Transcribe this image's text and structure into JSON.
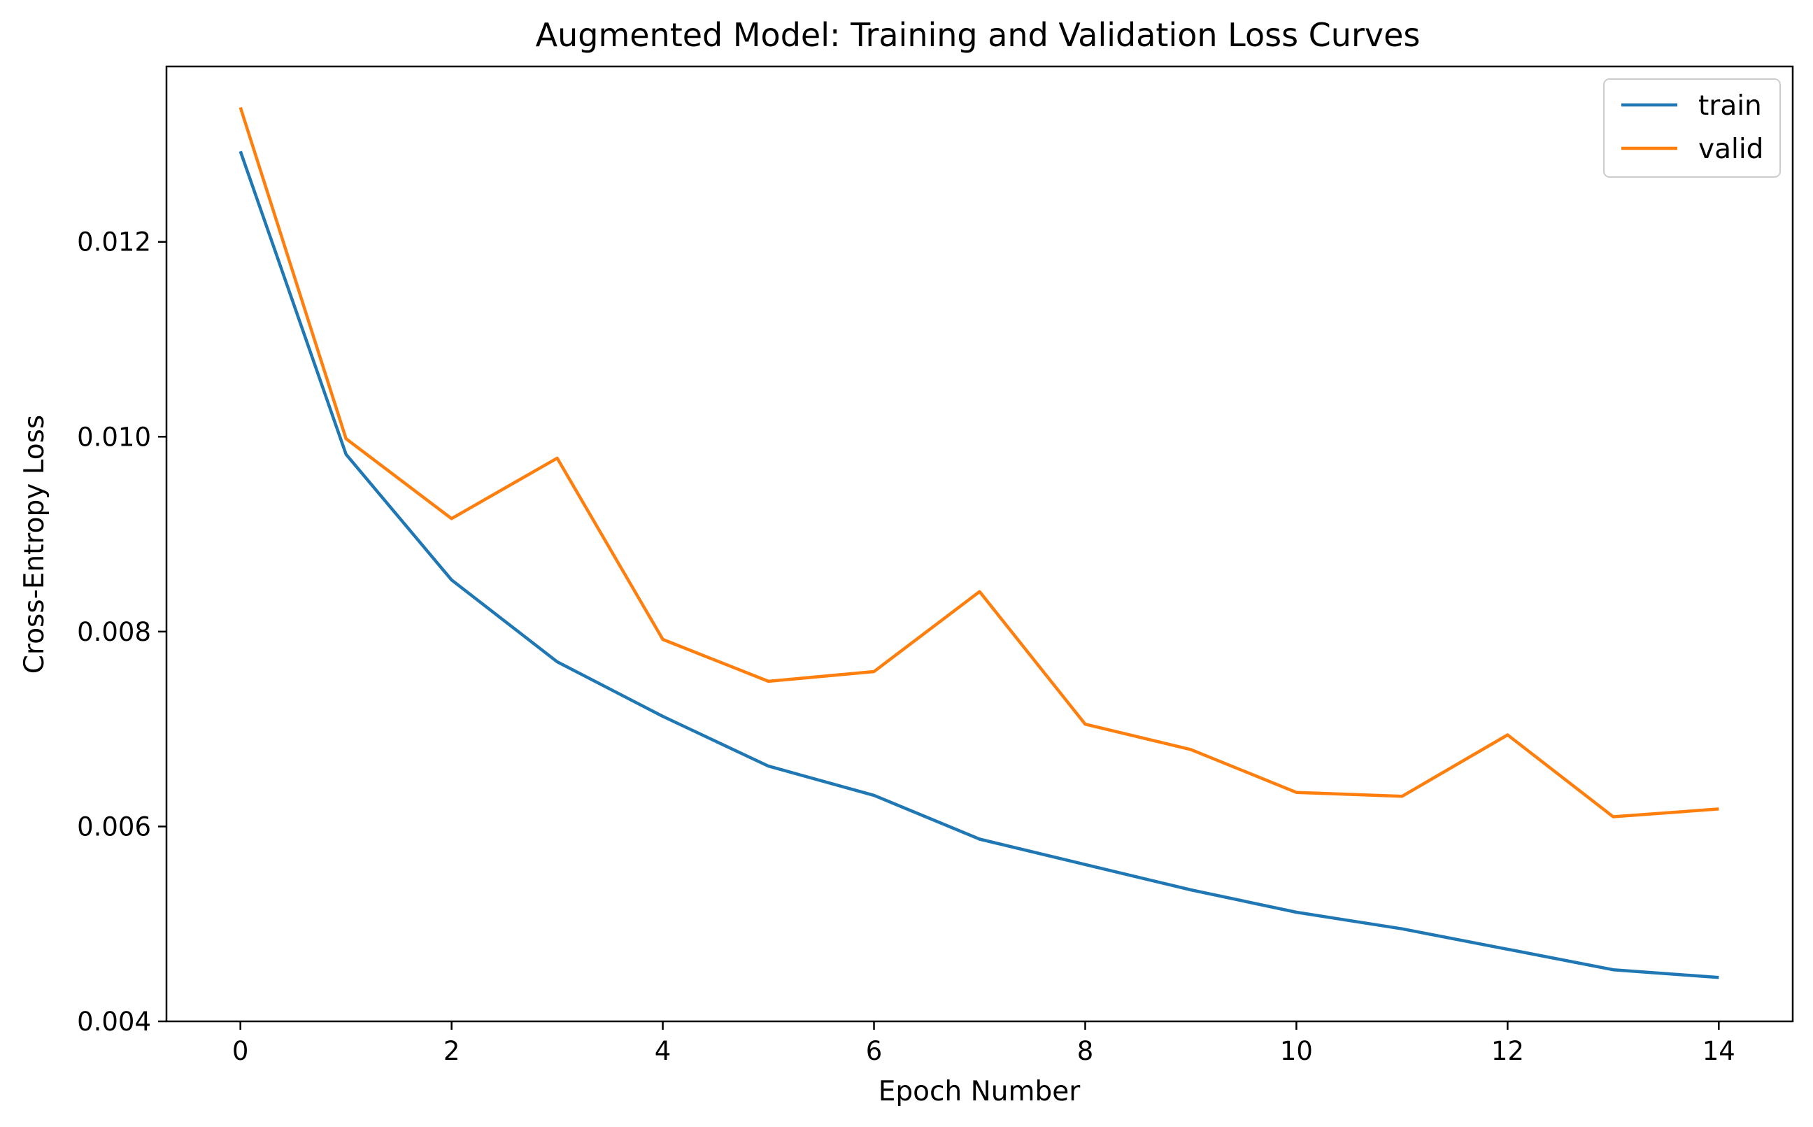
{
  "chart_data": {
    "type": "line",
    "title": "Augmented Model: Training and Validation Loss Curves",
    "xlabel": "Epoch Number",
    "ylabel": "Cross-Entropy Loss",
    "xlim": [
      -0.7,
      14.7
    ],
    "ylim": [
      0.004,
      0.0138
    ],
    "xticks": [
      0,
      2,
      4,
      6,
      8,
      10,
      12,
      14
    ],
    "xtick_labels": [
      "0",
      "2",
      "4",
      "6",
      "8",
      "10",
      "12",
      "14"
    ],
    "yticks": [
      0.004,
      0.006,
      0.008,
      0.01,
      0.012
    ],
    "ytick_labels": [
      "0.004",
      "0.006",
      "0.008",
      "0.010",
      "0.012"
    ],
    "grid": false,
    "legend_position": "top-right",
    "x": [
      0,
      1,
      2,
      3,
      4,
      5,
      6,
      7,
      8,
      9,
      10,
      11,
      12,
      13,
      14
    ],
    "series": [
      {
        "name": "train",
        "color": "#1f77b4",
        "values": [
          0.01293,
          0.00982,
          0.00853,
          0.00769,
          0.00713,
          0.00662,
          0.00632,
          0.00587,
          0.00561,
          0.00535,
          0.00512,
          0.00495,
          0.00474,
          0.00453,
          0.00445
        ]
      },
      {
        "name": "valid",
        "color": "#ff7f0e",
        "values": [
          0.01338,
          0.00998,
          0.00916,
          0.00978,
          0.00792,
          0.00749,
          0.00759,
          0.00841,
          0.00705,
          0.00679,
          0.00635,
          0.00631,
          0.00694,
          0.0061,
          0.00618
        ]
      }
    ]
  }
}
